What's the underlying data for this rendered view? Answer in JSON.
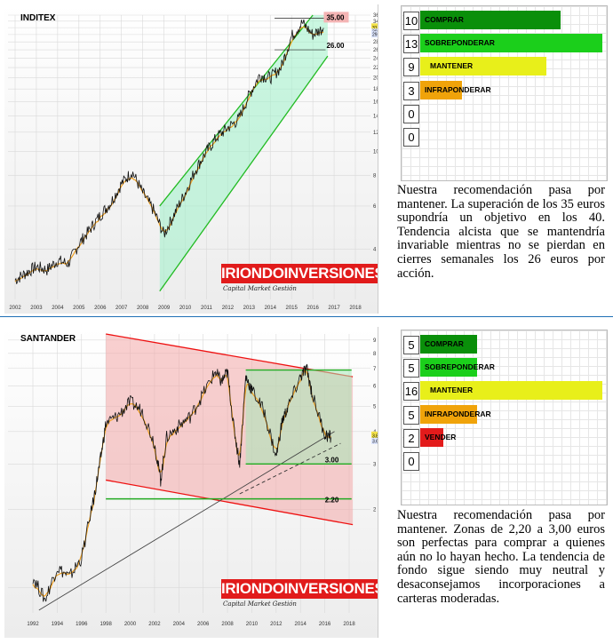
{
  "panels": [
    {
      "title": "INDITEX",
      "chart_data": {
        "type": "line",
        "title": "INDITEX",
        "x_ticks": [
          "2002",
          "2003",
          "2004",
          "2005",
          "2006",
          "2007",
          "2008",
          "2009",
          "2010",
          "2011",
          "2012",
          "2013",
          "2014",
          "2015",
          "2016",
          "2017",
          "2018"
        ],
        "y_scale": "log",
        "y_ticks": [
          "4",
          "6",
          "8",
          "10",
          "12",
          "14",
          "16",
          "18",
          "20",
          "22",
          "24",
          "26",
          "28",
          "30",
          "32",
          "34",
          "36"
        ],
        "ylim": [
          2.5,
          36
        ],
        "price_labels": [
          "31.950",
          "30.667",
          "29.910"
        ],
        "levels": [
          {
            "label": "35.00",
            "value": 35.0
          },
          {
            "label": "26.00",
            "value": 26.0
          }
        ],
        "series": {
          "x": [
            2002,
            2002.5,
            2003,
            2003.5,
            2004,
            2004.5,
            2005,
            2005.5,
            2006,
            2006.5,
            2007,
            2007.5,
            2008,
            2008.5,
            2009,
            2009.5,
            2010,
            2010.5,
            2011,
            2011.5,
            2012,
            2012.5,
            2013,
            2013.5,
            2014,
            2014.5,
            2015,
            2015.5,
            2016,
            2016.5
          ],
          "y": [
            3.0,
            3.2,
            3.4,
            3.3,
            3.6,
            3.5,
            4.2,
            4.8,
            5.5,
            6.2,
            7.4,
            8.3,
            6.8,
            5.8,
            4.6,
            5.6,
            6.8,
            8.5,
            10.0,
            11.5,
            12.5,
            13.5,
            17.0,
            20.5,
            20.0,
            22.0,
            29.5,
            33.5,
            30.0,
            31.9
          ]
        }
      },
      "recommendations": [
        {
          "count": "10",
          "label": "COMPRAR",
          "color": "#0a8f0a",
          "value": 10
        },
        {
          "count": "13",
          "label": "SOBREPONDERAR",
          "color": "#1bcf1b",
          "value": 13
        },
        {
          "count": "9",
          "label": "MANTENER",
          "color": "#e8ef1a",
          "value": 9
        },
        {
          "count": "3",
          "label": "INFRAPONDERAR",
          "color": "#f0a30a",
          "value": 3
        },
        {
          "count": "0",
          "label": "",
          "color": "#ffffff",
          "value": 0
        },
        {
          "count": "0",
          "label": "",
          "color": "#ffffff",
          "value": 0
        }
      ],
      "brand": "IRIONDOINVERSIONES",
      "brand_sub": "Capital Market Gestión",
      "comment": "Nuestra recomendación pasa por mantener. La superación de los 35 euros supondría un objetivo en los 40. Tendencia alcista que se mantendría invariable mientras no se pierdan en cierres semanales los 26 euros por acción."
    },
    {
      "title": "SANTANDER",
      "chart_data": {
        "type": "line",
        "title": "SANTANDER",
        "x_ticks": [
          "1992",
          "1994",
          "1996",
          "1998",
          "2000",
          "2002",
          "2004",
          "2006",
          "2008",
          "2010",
          "2012",
          "2014",
          "2016",
          "2018"
        ],
        "y_scale": "log",
        "y_ticks": [
          "1",
          "2",
          "3",
          "4",
          "5",
          "6",
          "7",
          "8",
          "9"
        ],
        "ylim": [
          0.8,
          9.5
        ],
        "price_labels": [
          "3.844",
          "3.6621"
        ],
        "levels": [
          {
            "label": "3.00",
            "value": 3.0
          },
          {
            "label": "2.20",
            "value": 2.2
          }
        ],
        "series": {
          "x": [
            1992,
            1993,
            1994,
            1995,
            1996,
            1997,
            1997.5,
            1998,
            1999,
            2000,
            2001,
            2002,
            2002.5,
            2003,
            2004,
            2005,
            2006,
            2007,
            2007.5,
            2008,
            2008.5,
            2009,
            2009.5,
            2010,
            2011,
            2012,
            2012.5,
            2013,
            2014,
            2014.5,
            2015,
            2016,
            2016.5
          ],
          "y": [
            1.1,
            0.9,
            1.2,
            1.1,
            1.3,
            2.2,
            3.0,
            4.3,
            4.6,
            5.2,
            4.8,
            3.6,
            2.6,
            3.8,
            4.2,
            4.6,
            5.6,
            6.8,
            6.2,
            6.8,
            4.2,
            3.0,
            6.5,
            5.8,
            4.8,
            3.2,
            4.4,
            5.0,
            6.5,
            7.0,
            5.5,
            3.9,
            3.8
          ]
        }
      },
      "recommendations": [
        {
          "count": "5",
          "label": "COMPRAR",
          "color": "#0a8f0a",
          "value": 5
        },
        {
          "count": "5",
          "label": "SOBREPONDERAR",
          "color": "#1bcf1b",
          "value": 5
        },
        {
          "count": "16",
          "label": "MANTENER",
          "color": "#e8ef1a",
          "value": 16
        },
        {
          "count": "5",
          "label": "INFRAPONDERAR",
          "color": "#f0a30a",
          "value": 5
        },
        {
          "count": "2",
          "label": "VENDER",
          "color": "#e31b1b",
          "value": 2
        },
        {
          "count": "0",
          "label": "",
          "color": "#ffffff",
          "value": 0
        }
      ],
      "brand": "IRIONDOINVERSIONES",
      "brand_sub": "Capital Market Gestión",
      "comment": "Nuestra recomendación pasa por mantener. Zonas de 2,20 a 3,00 euros son perfectas para comprar a quienes aún no lo hayan hecho. La tendencia de fondo sigue siendo muy neutral y desaconsejamos incorporaciones a carteras moderadas."
    }
  ]
}
